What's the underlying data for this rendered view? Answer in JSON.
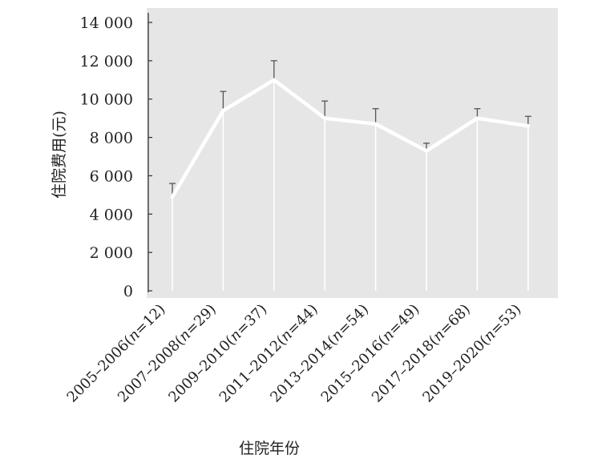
{
  "chart_data": {
    "type": "line",
    "title": "",
    "xlabel": "住院年份",
    "ylabel": "住院费用(元)",
    "ylim": [
      0,
      14000
    ],
    "yticks": [
      0,
      2000,
      4000,
      6000,
      8000,
      10000,
      12000,
      14000
    ],
    "ytick_labels": [
      "0",
      "2 000",
      "4 000",
      "6 000",
      "8 000",
      "10 000",
      "12 000",
      "14 000"
    ],
    "categories": [
      "2005–2006(n=12)",
      "2007–2008(n=29)",
      "2009–2010(n=37)",
      "2011–2012(n=44)",
      "2013–2014(n=54)",
      "2015–2016(n=49)",
      "2017–2018(n=68)",
      "2019–2020(n=53)"
    ],
    "series": [
      {
        "values": [
          4900,
          9400,
          11000,
          9000,
          8700,
          7300,
          9000,
          8600
        ],
        "error_upper": [
          5600,
          10400,
          12000,
          9900,
          9500,
          7700,
          9500,
          9100
        ]
      }
    ],
    "grid": false,
    "colors": {
      "plot_background": "#e6e6e6",
      "line": "#ffffff",
      "axis": "#333333",
      "error_bar": "#555555"
    }
  }
}
